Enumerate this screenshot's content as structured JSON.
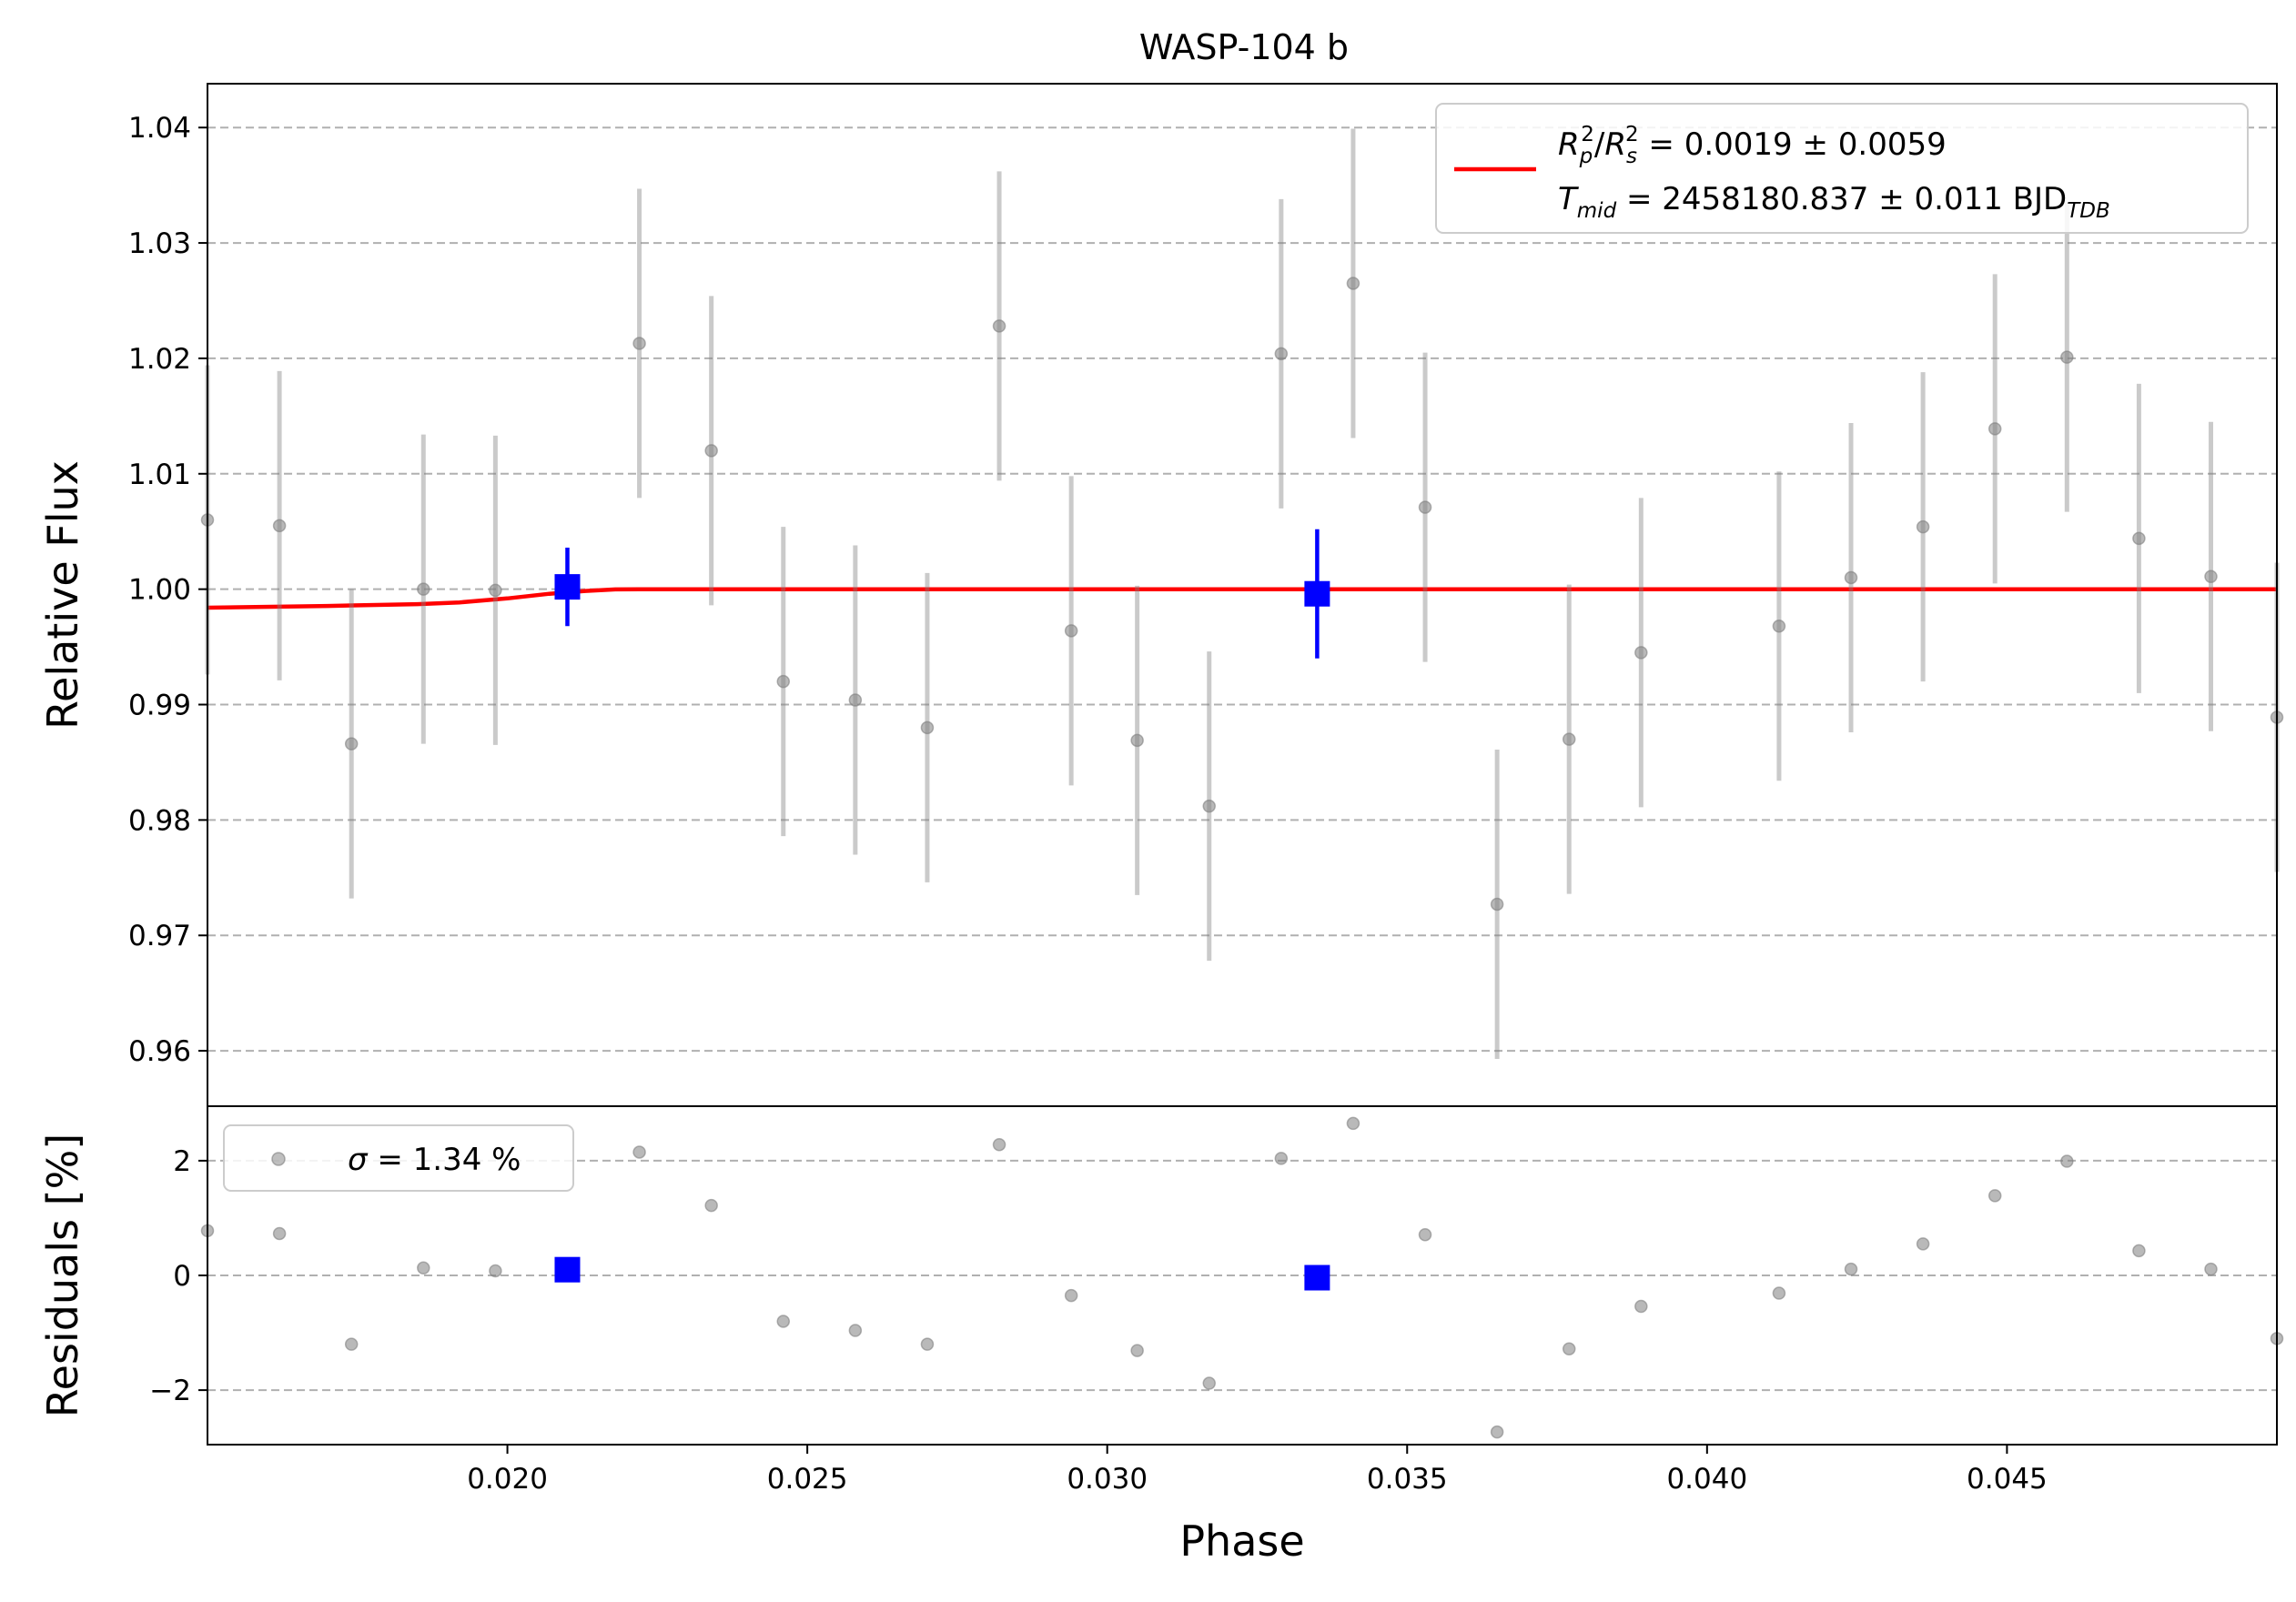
{
  "chart_data": [
    {
      "panel": "main",
      "type": "scatter",
      "title": "WASP-104 b",
      "xlabel": "",
      "ylabel": "Relative Flux",
      "xlim": [
        0.015,
        0.0495
      ],
      "ylim": [
        0.9552,
        1.0438
      ],
      "grid": "horizontal-dashed",
      "legend_placement": "top-right",
      "xticks": [
        0.02,
        0.025,
        0.03,
        0.035,
        0.04,
        0.045
      ],
      "xtick_labels": [
        "0.020",
        "0.025",
        "0.030",
        "0.035",
        "0.040",
        "0.045"
      ],
      "yticks": [
        0.96,
        0.97,
        0.98,
        0.99,
        1.0,
        1.01,
        1.02,
        1.03,
        1.04
      ],
      "ytick_labels": [
        "0.96",
        "0.97",
        "0.98",
        "0.99",
        "1.00",
        "1.01",
        "1.02",
        "1.03",
        "1.04"
      ],
      "legend": {
        "line1": {
          "r_main": "R",
          "r_sub": "p",
          "r_sup": "2",
          "slash": "/",
          "s_main": "R",
          "s_sub": "s",
          "s_sup": "2",
          "rest": " = 0.0019 ± 0.0059"
        },
        "line2": {
          "t_main": "T",
          "t_sub": "mid",
          "rest": " = 2458180.837 ± 0.011 BJD",
          "unit_sub": "TDB"
        }
      },
      "series": [
        {
          "type": "errorbar",
          "color": "#808080",
          "x": [
            0.015,
            0.0162,
            0.0174,
            0.0186,
            0.0198,
            0.0222,
            0.0234,
            0.0246,
            0.0258,
            0.027,
            0.0282,
            0.0294,
            0.0305,
            0.0317,
            0.0329,
            0.0341,
            0.0353,
            0.0365,
            0.0377,
            0.0389,
            0.0412,
            0.0424,
            0.0436,
            0.0448,
            0.046,
            0.0472,
            0.0484,
            0.0495
          ],
          "y": [
            1.006,
            1.0055,
            0.9866,
            1.0,
            0.9999,
            1.0213,
            1.012,
            0.992,
            0.9904,
            0.988,
            1.0228,
            0.9964,
            0.9869,
            0.9812,
            1.0204,
            1.0265,
            1.0071,
            0.9727,
            0.987,
            0.9945,
            0.9968,
            1.001,
            1.0054,
            1.0139,
            1.0201,
            1.0044,
            1.0011,
            0.9889
          ],
          "yerr": [
            0.0134,
            0.0134,
            0.0134,
            0.0134,
            0.0134,
            0.0134,
            0.0134,
            0.0134,
            0.0134,
            0.0134,
            0.0134,
            0.0134,
            0.0134,
            0.0134,
            0.0134,
            0.0134,
            0.0134,
            0.0134,
            0.0134,
            0.0134,
            0.0134,
            0.0134,
            0.0134,
            0.0134,
            0.0134,
            0.0134,
            0.0134,
            0.0134
          ]
        },
        {
          "type": "binned",
          "color": "#0000ff",
          "x": [
            0.021,
            0.0335
          ],
          "y": [
            1.0002,
            0.9996
          ],
          "yerr": [
            0.0034,
            0.0056
          ]
        },
        {
          "type": "line",
          "color": "#ff0000",
          "x": [
            0.015,
            0.017,
            0.0185,
            0.0192,
            0.02,
            0.0207,
            0.0213,
            0.0218,
            0.0222,
            0.0495
          ],
          "y": [
            0.9984,
            0.99855,
            0.9987,
            0.99885,
            0.9992,
            0.9996,
            0.99985,
            0.99998,
            1.0,
            1.0
          ]
        }
      ]
    },
    {
      "panel": "residuals",
      "type": "scatter",
      "xlabel": "Phase",
      "ylabel": "Residuals [%]",
      "xlim": [
        0.015,
        0.0495
      ],
      "ylim": [
        -2.95,
        2.95
      ],
      "grid": "horizontal-dashed",
      "legend_placement": "top-left",
      "yticks": [
        -2,
        0,
        2
      ],
      "ytick_labels": [
        "−2",
        "0",
        "2"
      ],
      "legend": {
        "sigma_symbol": "σ",
        "rest": " = 1.34 %"
      },
      "series": [
        {
          "type": "points",
          "color": "#808080",
          "x": [
            0.015,
            0.0162,
            0.0174,
            0.0186,
            0.0198,
            0.0222,
            0.0234,
            0.0246,
            0.0258,
            0.027,
            0.0282,
            0.0294,
            0.0305,
            0.0317,
            0.0329,
            0.0341,
            0.0353,
            0.0365,
            0.0377,
            0.0389,
            0.0412,
            0.0424,
            0.0436,
            0.0448,
            0.046,
            0.0472,
            0.0484,
            0.0495
          ],
          "y": [
            0.78,
            0.73,
            -1.2,
            0.13,
            0.08,
            2.15,
            1.22,
            -0.8,
            -0.96,
            -1.2,
            2.28,
            -0.35,
            -1.31,
            -1.88,
            2.04,
            2.65,
            0.71,
            -2.73,
            -1.28,
            -0.54,
            -0.31,
            0.11,
            0.55,
            1.39,
            1.99,
            0.43,
            0.11,
            -1.1
          ]
        },
        {
          "type": "binned",
          "color": "#0000ff",
          "x": [
            0.021,
            0.0335
          ],
          "y": [
            0.1,
            -0.04
          ]
        }
      ]
    }
  ]
}
